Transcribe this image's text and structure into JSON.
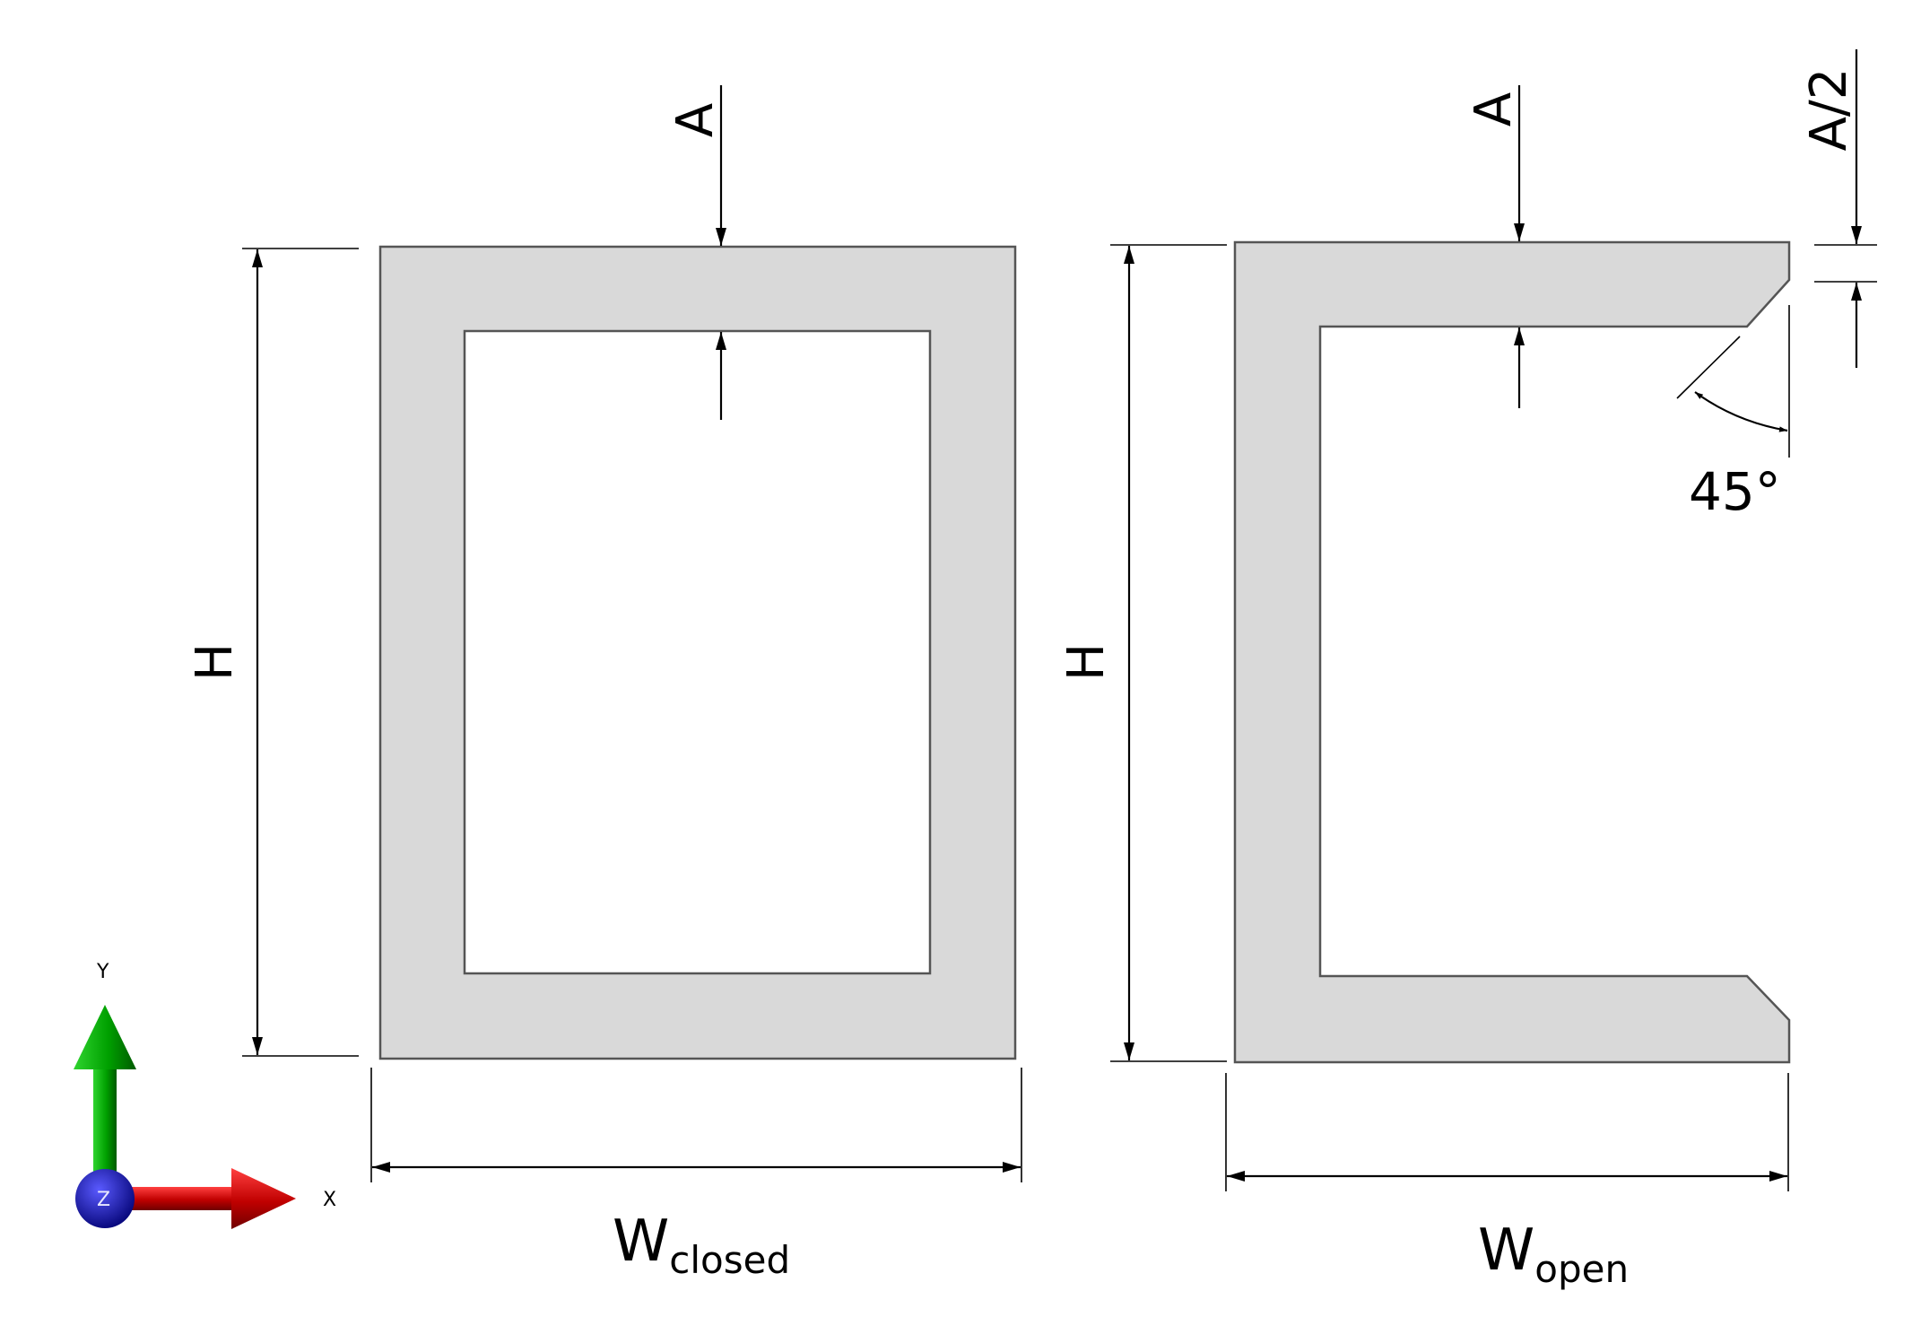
{
  "closed_section": {
    "height_label": "H",
    "thickness_label": "A",
    "width_label_main": "W",
    "width_label_sub": "closed"
  },
  "open_section": {
    "height_label": "H",
    "thickness_label": "A",
    "lip_label": "A/2",
    "angle_label": "45°",
    "width_label_main": "W",
    "width_label_sub": "open"
  },
  "axes": {
    "x_label": "X",
    "y_label": "Y",
    "z_label": "Z",
    "colors": {
      "x": "#c00000",
      "y": "#00a000",
      "z": "#1a1aa0"
    }
  }
}
